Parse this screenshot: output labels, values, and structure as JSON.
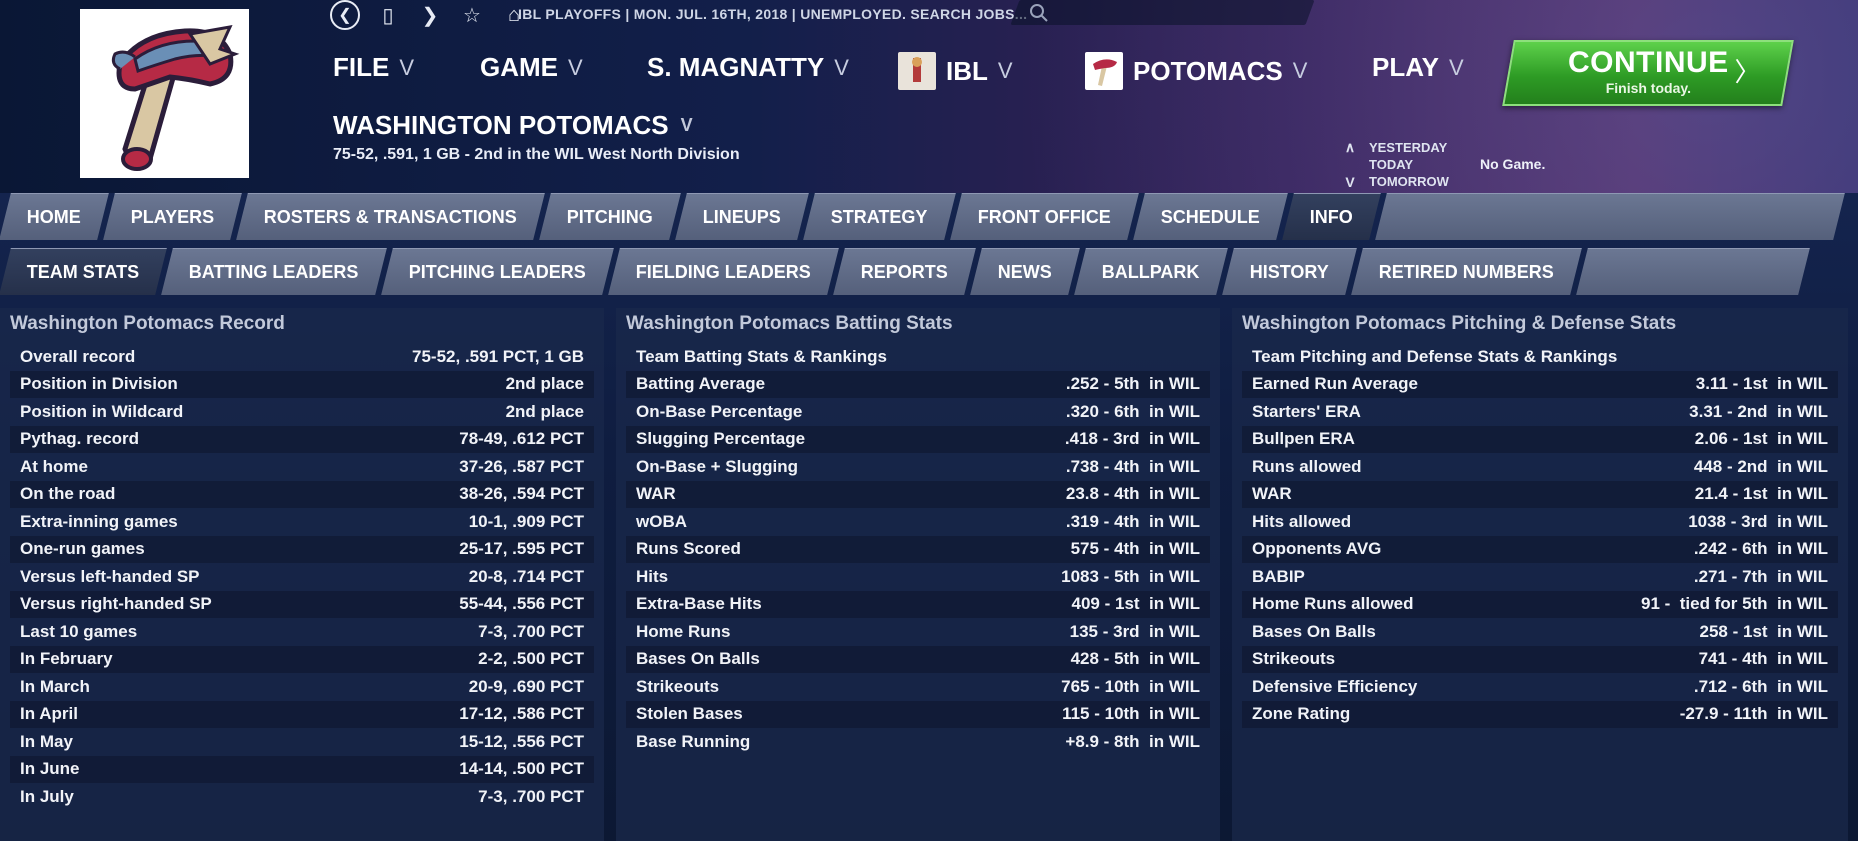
{
  "topbar": {
    "status_text": "IBL PLAYOFFS  |  MON. JUL. 16TH, 2018  |  UNEMPLOYED. SEARCH JOBS..."
  },
  "menu": {
    "file": "FILE",
    "game": "GAME",
    "manager": "S. MAGNATTY",
    "league": "IBL",
    "team": "POTOMACS",
    "play": "PLAY",
    "chevron": "V"
  },
  "continue": {
    "label": "CONTINUE",
    "sub": "Finish today.",
    "arrow": "〉"
  },
  "team": {
    "name": "WASHINGTON POTOMACS",
    "record": "75-52, .591, 1 GB - 2nd in the WIL West North Division"
  },
  "daynav": {
    "yesterday": "YESTERDAY",
    "today": "TODAY",
    "tomorrow": "TOMORROW",
    "up": "∧",
    "down": "V",
    "today_status": "No Game."
  },
  "tabs_main": [
    "HOME",
    "PLAYERS",
    "ROSTERS & TRANSACTIONS",
    "PITCHING",
    "LINEUPS",
    "STRATEGY",
    "FRONT OFFICE",
    "SCHEDULE",
    "INFO"
  ],
  "tabs_sub": [
    "TEAM STATS",
    "BATTING LEADERS",
    "PITCHING LEADERS",
    "FIELDING LEADERS",
    "REPORTS",
    "NEWS",
    "BALLPARK",
    "HISTORY",
    "RETIRED NUMBERS"
  ],
  "record_panel": {
    "title": "Washington Potomacs Record",
    "rows": [
      [
        "Overall record",
        "75-52, .591 PCT, 1 GB"
      ],
      [
        "Position in Division",
        "2nd place"
      ],
      [
        "Position in Wildcard",
        "2nd place"
      ],
      [
        "Pythag. record",
        "78-49, .612 PCT"
      ],
      [
        "At home",
        "37-26, .587 PCT"
      ],
      [
        "On the road",
        "38-26, .594 PCT"
      ],
      [
        "Extra-inning games",
        "10-1, .909 PCT"
      ],
      [
        "One-run games",
        "25-17, .595 PCT"
      ],
      [
        "Versus left-handed SP",
        "20-8, .714 PCT"
      ],
      [
        "Versus right-handed SP",
        "55-44, .556 PCT"
      ],
      [
        "Last 10 games",
        "7-3, .700 PCT"
      ],
      [
        "In February",
        "2-2, .500 PCT"
      ],
      [
        "In March",
        "20-9, .690 PCT"
      ],
      [
        "In April",
        "17-12, .586 PCT"
      ],
      [
        "In May",
        "15-12, .556 PCT"
      ],
      [
        "In June",
        "14-14, .500 PCT"
      ],
      [
        "In July",
        "7-3, .700 PCT"
      ]
    ]
  },
  "batting_panel": {
    "title": "Washington Potomacs Batting Stats",
    "subtitle": "Team Batting Stats & Rankings",
    "rows": [
      [
        "Batting Average",
        ".252 - 5th  in WIL"
      ],
      [
        "On-Base Percentage",
        ".320 - 6th  in WIL"
      ],
      [
        "Slugging Percentage",
        ".418 - 3rd  in WIL"
      ],
      [
        "On-Base + Slugging",
        ".738 - 4th  in WIL"
      ],
      [
        "WAR",
        "23.8 - 4th  in WIL"
      ],
      [
        "wOBA",
        ".319 - 4th  in WIL"
      ],
      [
        "Runs Scored",
        "575 - 4th  in WIL"
      ],
      [
        "Hits",
        "1083 - 5th  in WIL"
      ],
      [
        "Extra-Base Hits",
        "409 - 1st  in WIL"
      ],
      [
        "Home Runs",
        "135 - 3rd  in WIL"
      ],
      [
        "Bases On Balls",
        "428 - 5th  in WIL"
      ],
      [
        "Strikeouts",
        "765 - 10th  in WIL"
      ],
      [
        "Stolen Bases",
        "115 - 10th  in WIL"
      ],
      [
        "Base Running",
        "+8.9 - 8th  in WIL"
      ]
    ]
  },
  "pitching_panel": {
    "title": "Washington Potomacs Pitching & Defense Stats",
    "subtitle": "Team Pitching and Defense Stats & Rankings",
    "rows": [
      [
        "Earned Run Average",
        "3.11 - 1st  in WIL"
      ],
      [
        "Starters' ERA",
        "3.31 - 2nd  in WIL"
      ],
      [
        "Bullpen ERA",
        "2.06 - 1st  in WIL"
      ],
      [
        "Runs allowed",
        "448 - 2nd  in WIL"
      ],
      [
        "WAR",
        "21.4 - 1st  in WIL"
      ],
      [
        "Hits allowed",
        "1038 - 3rd  in WIL"
      ],
      [
        "Opponents AVG",
        ".242 - 6th  in WIL"
      ],
      [
        "BABIP",
        ".271 - 7th  in WIL"
      ],
      [
        "Home Runs allowed",
        "91 -  tied for 5th  in WIL"
      ],
      [
        "Bases On Balls",
        "258 - 1st  in WIL"
      ],
      [
        "Strikeouts",
        "741 - 4th  in WIL"
      ],
      [
        "Defensive Efficiency",
        ".712 - 6th  in WIL"
      ],
      [
        "Zone Rating",
        "-27.9 - 11th  in WIL"
      ]
    ]
  },
  "colors": {
    "accent_green": "#2e9c25",
    "tab": "#5f6a86",
    "panel": "#19284b"
  }
}
